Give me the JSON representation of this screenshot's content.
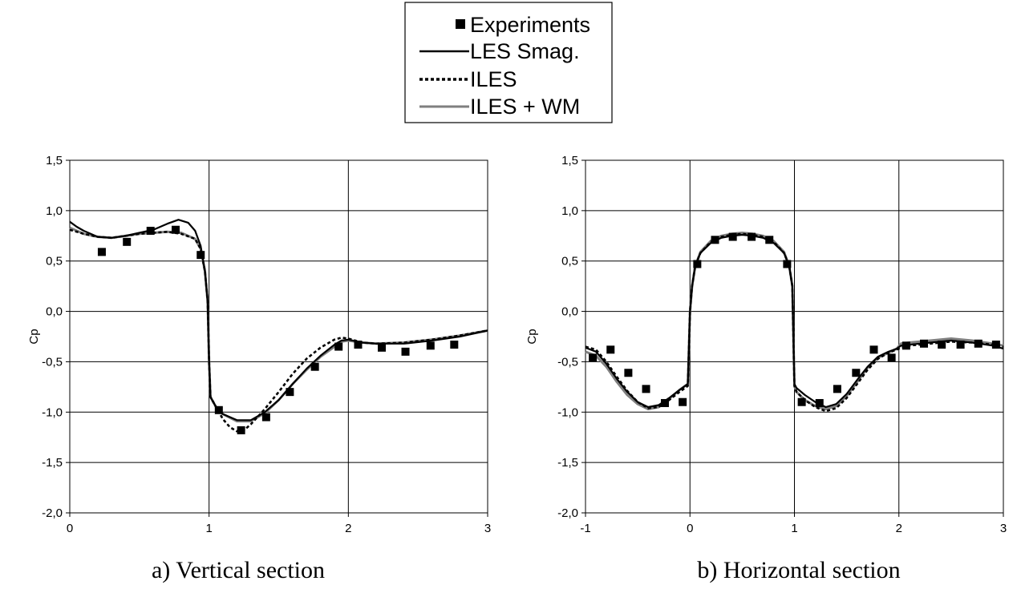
{
  "legend": {
    "entries": [
      {
        "label": "Experiments",
        "style": "marker"
      },
      {
        "label": "LES Smag.",
        "style": "solid",
        "color": "#000000"
      },
      {
        "label": "ILES",
        "style": "dotted",
        "color": "#000000"
      },
      {
        "label": "ILES + WM",
        "style": "solid",
        "color": "#7f7f7f"
      }
    ]
  },
  "chart_data": [
    {
      "type": "line",
      "caption": "a) Vertical section",
      "ylabel": "Cp",
      "xlim": [
        0,
        3
      ],
      "ylim": [
        -2.0,
        1.5
      ],
      "xticks": [
        "0",
        "1",
        "2",
        "3"
      ],
      "yticks": [
        "1,5",
        "1,0",
        "0,5",
        "0,0",
        "-0,5",
        "-1,0",
        "-1,5",
        "-2,0"
      ],
      "grid": true,
      "experiments": {
        "name": "Experiments",
        "x": [
          0.23,
          0.41,
          0.58,
          0.76,
          0.94,
          1.07,
          1.23,
          1.41,
          1.58,
          1.76,
          1.93,
          2.07,
          2.24,
          2.41,
          2.59,
          2.76
        ],
        "y": [
          0.59,
          0.69,
          0.8,
          0.81,
          0.56,
          -0.98,
          -1.18,
          -1.05,
          -0.8,
          -0.55,
          -0.35,
          -0.33,
          -0.36,
          -0.4,
          -0.34,
          -0.33
        ]
      },
      "series": [
        {
          "name": "LES Smag.",
          "color": "#000000",
          "dash": "solid",
          "x": [
            0,
            0.05,
            0.1,
            0.2,
            0.3,
            0.4,
            0.5,
            0.6,
            0.7,
            0.78,
            0.85,
            0.9,
            0.94,
            0.97,
            0.99,
            1.0,
            1.01,
            1.05,
            1.1,
            1.2,
            1.3,
            1.4,
            1.5,
            1.6,
            1.7,
            1.8,
            1.9,
            1.95,
            2.0,
            2.1,
            2.2,
            2.4,
            2.6,
            2.8,
            3.0
          ],
          "y": [
            0.89,
            0.84,
            0.8,
            0.74,
            0.73,
            0.75,
            0.78,
            0.81,
            0.87,
            0.91,
            0.88,
            0.8,
            0.65,
            0.4,
            0.1,
            -0.5,
            -0.85,
            -0.95,
            -1.02,
            -1.08,
            -1.08,
            -1.0,
            -0.88,
            -0.72,
            -0.57,
            -0.44,
            -0.33,
            -0.29,
            -0.28,
            -0.31,
            -0.32,
            -0.32,
            -0.29,
            -0.25,
            -0.19
          ]
        },
        {
          "name": "ILES",
          "color": "#000000",
          "dash": "dotted",
          "x": [
            0,
            0.1,
            0.2,
            0.3,
            0.4,
            0.5,
            0.6,
            0.7,
            0.8,
            0.9,
            0.94,
            0.97,
            0.99,
            1.0,
            1.01,
            1.05,
            1.1,
            1.15,
            1.2,
            1.25,
            1.3,
            1.4,
            1.5,
            1.6,
            1.7,
            1.8,
            1.9,
            1.95,
            2.0,
            2.1,
            2.2,
            2.4,
            2.6,
            2.8,
            3.0
          ],
          "y": [
            0.81,
            0.77,
            0.74,
            0.73,
            0.75,
            0.77,
            0.78,
            0.79,
            0.77,
            0.72,
            0.62,
            0.4,
            0.1,
            -0.5,
            -0.85,
            -0.95,
            -1.07,
            -1.15,
            -1.19,
            -1.18,
            -1.12,
            -0.97,
            -0.8,
            -0.62,
            -0.47,
            -0.36,
            -0.28,
            -0.26,
            -0.27,
            -0.31,
            -0.32,
            -0.31,
            -0.28,
            -0.24,
            -0.19
          ]
        },
        {
          "name": "ILES + WM",
          "color": "#7f7f7f",
          "dash": "solid",
          "x": [
            0,
            0.1,
            0.2,
            0.3,
            0.4,
            0.5,
            0.6,
            0.7,
            0.8,
            0.9,
            0.94,
            0.97,
            0.99,
            1.0,
            1.01,
            1.05,
            1.1,
            1.2,
            1.3,
            1.4,
            1.5,
            1.6,
            1.7,
            1.8,
            1.9,
            1.95,
            2.0,
            2.1,
            2.2,
            2.4,
            2.6,
            2.8,
            3.0
          ],
          "y": [
            0.83,
            0.77,
            0.74,
            0.73,
            0.75,
            0.77,
            0.78,
            0.79,
            0.78,
            0.72,
            0.62,
            0.4,
            0.1,
            -0.5,
            -0.85,
            -0.95,
            -1.02,
            -1.09,
            -1.09,
            -1.01,
            -0.88,
            -0.72,
            -0.58,
            -0.45,
            -0.35,
            -0.3,
            -0.29,
            -0.31,
            -0.32,
            -0.31,
            -0.28,
            -0.24,
            -0.19
          ]
        }
      ]
    },
    {
      "type": "line",
      "caption": "b) Horizontal section",
      "ylabel": "Cp",
      "xlim": [
        -1,
        3
      ],
      "ylim": [
        -2.0,
        1.5
      ],
      "xticks": [
        "-1",
        "0",
        "1",
        "2",
        "3"
      ],
      "yticks": [
        "1,5",
        "1,0",
        "0,5",
        "0,0",
        "-0,5",
        "-1,0",
        "-1,5",
        "-2,0"
      ],
      "grid": true,
      "experiments": {
        "name": "Experiments",
        "x": [
          -0.93,
          -0.76,
          -0.59,
          -0.42,
          -0.24,
          -0.07,
          0.07,
          0.24,
          0.41,
          0.59,
          0.76,
          0.93,
          1.07,
          1.24,
          1.41,
          1.59,
          1.76,
          1.93,
          2.07,
          2.24,
          2.41,
          2.59,
          2.76,
          2.93
        ],
        "y": [
          -0.46,
          -0.38,
          -0.61,
          -0.77,
          -0.91,
          -0.9,
          0.47,
          0.71,
          0.74,
          0.74,
          0.71,
          0.47,
          -0.9,
          -0.91,
          -0.77,
          -0.61,
          -0.38,
          -0.46,
          -0.34,
          -0.32,
          -0.33,
          -0.33,
          -0.32,
          -0.33
        ]
      },
      "series": [
        {
          "name": "LES Smag.",
          "color": "#000000",
          "dash": "solid",
          "x": [
            -1.0,
            -0.9,
            -0.8,
            -0.7,
            -0.6,
            -0.5,
            -0.4,
            -0.3,
            -0.2,
            -0.1,
            -0.02,
            0.0,
            0.02,
            0.05,
            0.1,
            0.2,
            0.3,
            0.4,
            0.5,
            0.6,
            0.7,
            0.8,
            0.9,
            0.95,
            0.98,
            1.0,
            1.02,
            1.1,
            1.2,
            1.3,
            1.4,
            1.5,
            1.6,
            1.7,
            1.8,
            1.9,
            1.98,
            2.02,
            2.1,
            2.3,
            2.5,
            2.7,
            2.9,
            3.0
          ],
          "y": [
            -0.36,
            -0.4,
            -0.52,
            -0.67,
            -0.8,
            -0.9,
            -0.95,
            -0.93,
            -0.86,
            -0.78,
            -0.72,
            0.0,
            0.25,
            0.45,
            0.58,
            0.68,
            0.73,
            0.75,
            0.76,
            0.75,
            0.73,
            0.68,
            0.58,
            0.45,
            0.25,
            -0.72,
            -0.76,
            -0.83,
            -0.9,
            -0.95,
            -0.92,
            -0.82,
            -0.68,
            -0.55,
            -0.45,
            -0.4,
            -0.37,
            -0.34,
            -0.33,
            -0.31,
            -0.29,
            -0.31,
            -0.34,
            -0.37
          ]
        },
        {
          "name": "ILES",
          "color": "#000000",
          "dash": "dotted",
          "x": [
            -1.0,
            -0.9,
            -0.8,
            -0.7,
            -0.6,
            -0.5,
            -0.4,
            -0.3,
            -0.2,
            -0.1,
            -0.02,
            0.0,
            0.02,
            0.05,
            0.1,
            0.2,
            0.3,
            0.4,
            0.5,
            0.6,
            0.7,
            0.8,
            0.9,
            0.95,
            0.98,
            1.0,
            1.02,
            1.1,
            1.2,
            1.3,
            1.4,
            1.5,
            1.6,
            1.7,
            1.8,
            1.9,
            1.98,
            2.02,
            2.1,
            2.3,
            2.5,
            2.7,
            2.9,
            3.0
          ],
          "y": [
            -0.35,
            -0.38,
            -0.5,
            -0.65,
            -0.79,
            -0.9,
            -0.96,
            -0.95,
            -0.88,
            -0.8,
            -0.74,
            0.0,
            0.25,
            0.45,
            0.58,
            0.69,
            0.74,
            0.76,
            0.77,
            0.76,
            0.74,
            0.69,
            0.58,
            0.45,
            0.25,
            -0.74,
            -0.8,
            -0.88,
            -0.95,
            -0.99,
            -0.96,
            -0.86,
            -0.72,
            -0.58,
            -0.47,
            -0.41,
            -0.38,
            -0.36,
            -0.34,
            -0.32,
            -0.3,
            -0.31,
            -0.33,
            -0.35
          ]
        },
        {
          "name": "ILES + WM",
          "color": "#7f7f7f",
          "dash": "solid",
          "x": [
            -1.0,
            -0.9,
            -0.8,
            -0.7,
            -0.6,
            -0.5,
            -0.4,
            -0.3,
            -0.2,
            -0.1,
            -0.02,
            0.0,
            0.02,
            0.05,
            0.1,
            0.2,
            0.3,
            0.4,
            0.5,
            0.6,
            0.7,
            0.8,
            0.9,
            0.95,
            0.98,
            1.0,
            1.02,
            1.1,
            1.2,
            1.3,
            1.4,
            1.5,
            1.6,
            1.7,
            1.8,
            1.9,
            1.98,
            2.02,
            2.1,
            2.3,
            2.5,
            2.7,
            2.9,
            3.0
          ],
          "y": [
            -0.4,
            -0.44,
            -0.55,
            -0.7,
            -0.83,
            -0.92,
            -0.97,
            -0.95,
            -0.87,
            -0.78,
            -0.72,
            0.0,
            0.25,
            0.45,
            0.59,
            0.7,
            0.75,
            0.77,
            0.78,
            0.77,
            0.75,
            0.7,
            0.59,
            0.45,
            0.25,
            -0.74,
            -0.8,
            -0.88,
            -0.94,
            -0.97,
            -0.94,
            -0.84,
            -0.7,
            -0.56,
            -0.46,
            -0.41,
            -0.37,
            -0.32,
            -0.31,
            -0.29,
            -0.27,
            -0.29,
            -0.32,
            -0.34
          ]
        }
      ]
    }
  ]
}
